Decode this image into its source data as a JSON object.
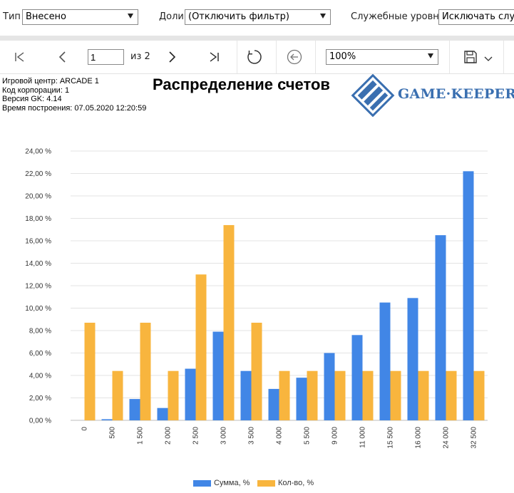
{
  "filters": {
    "type_label": "Тип",
    "type_value": "Внесено",
    "shares_label": "Доли",
    "shares_value": "(Отключить фильтр)",
    "service_label": "Служебные уровни",
    "service_value": "Исключать служ"
  },
  "toolbar": {
    "page_current": "1",
    "page_total": "из 2",
    "zoom": "100%"
  },
  "report": {
    "info_lines": [
      "Игровой центр: ARCADE 1",
      "Код корпорации: 1",
      "Версия GK: 4.14",
      "Время построения: 07.05.2020 12:20:59"
    ],
    "title": "Распределение счетов",
    "logo_text": "GAME·KEEPER"
  },
  "colors": {
    "series_sum": "#4186e6",
    "series_count": "#f8b53e",
    "logo": "#3a6fb0"
  },
  "chart_data": {
    "type": "bar",
    "title": "",
    "xlabel": "",
    "ylabel": "",
    "categories": [
      "0",
      "500",
      "1 500",
      "2 000",
      "2 500",
      "3 000",
      "3 500",
      "4 000",
      "5 500",
      "9 000",
      "11 000",
      "15 500",
      "16 000",
      "24 000",
      "32 500"
    ],
    "series": [
      {
        "name": "Сумма, %",
        "values": [
          0,
          0.1,
          1.9,
          1.1,
          4.6,
          7.9,
          4.4,
          2.8,
          3.8,
          6.0,
          7.6,
          10.5,
          10.9,
          16.5,
          22.2
        ]
      },
      {
        "name": "Кол-во, %",
        "values": [
          8.7,
          4.4,
          8.7,
          4.4,
          13.0,
          17.4,
          8.7,
          4.4,
          4.4,
          4.4,
          4.4,
          4.4,
          4.4,
          4.4,
          4.4
        ]
      }
    ],
    "ylim": [
      0,
      24
    ],
    "y_ticks": [
      "0,00 %",
      "2,00 %",
      "4,00 %",
      "6,00 %",
      "8,00 %",
      "10,00 %",
      "12,00 %",
      "14,00 %",
      "16,00 %",
      "18,00 %",
      "20,00 %",
      "22,00 %",
      "24,00 %"
    ],
    "grid": true,
    "legend_position": "bottom"
  }
}
